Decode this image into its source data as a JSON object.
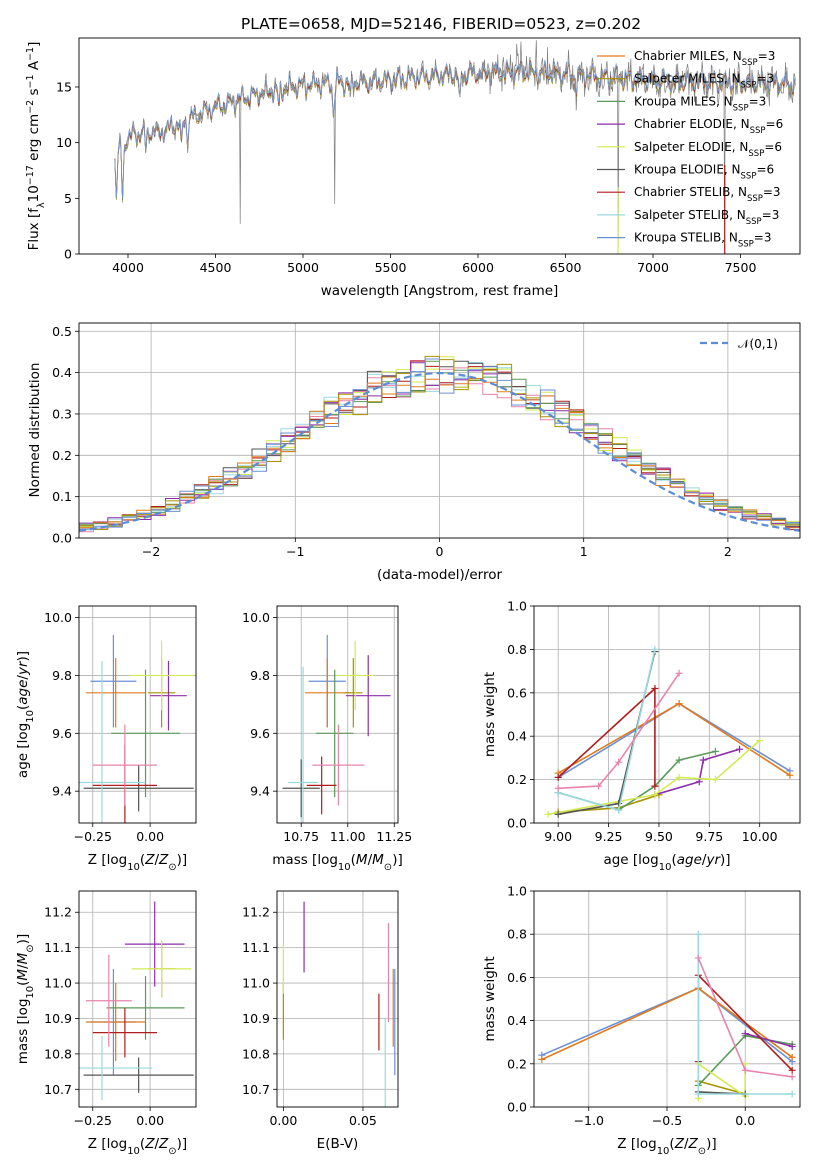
{
  "figure_title": "PLATE=0658, MJD=52146, FIBERID=0523, z=0.202",
  "colors": [
    "#6c8fd6",
    "#e07b1e",
    "#a89300",
    "#5a9a5a",
    "#8c2fa8",
    "#d4ea55",
    "#555555",
    "#b01d1d",
    "#9ad8df",
    "#e883ab"
  ],
  "chart_data": [
    {
      "id": "spectrum",
      "type": "line",
      "xlabel": "wavelength [Angstrom, rest frame]",
      "ylabel": "Flux [f_λ 10^{-17} erg cm^{-2} s^{-1} A^{-1}]",
      "ylabel_parts": {
        "a": "Flux [f",
        "b": "λ",
        "c": "10",
        "d": "−17",
        "e": " erg cm",
        "f": "−2",
        "g": " s",
        "h": "−1",
        "i": " A",
        "j": "−1",
        "k": "]"
      },
      "xlim": [
        3720,
        7840
      ],
      "ylim": [
        0,
        19.4
      ],
      "xticks": [
        4000,
        4500,
        5000,
        5500,
        6000,
        6500,
        7000,
        7500
      ],
      "yticks": [
        0,
        5,
        10,
        15
      ],
      "grid": false,
      "legend_position": "top-right",
      "data_range": [
        3925,
        7815
      ],
      "series": [
        {
          "name": "Chabrier MILES, N_SSP=3",
          "label": "Chabrier MILES, N",
          "sub": "SSP",
          "tail": "=3"
        },
        {
          "name": "Salpeter MILES, N_SSP=3",
          "label": "Salpeter MILES, N",
          "sub": "SSP",
          "tail": "=3"
        },
        {
          "name": "Kroupa MILES, N_SSP=3",
          "label": "Kroupa MILES, N",
          "sub": "SSP",
          "tail": "=3"
        },
        {
          "name": "Chabrier ELODIE, N_SSP=6",
          "label": "Chabrier ELODIE, N",
          "sub": "SSP",
          "tail": "=6"
        },
        {
          "name": "Salpeter ELODIE, N_SSP=6",
          "label": "Salpeter ELODIE, N",
          "sub": "SSP",
          "tail": "=6"
        },
        {
          "name": "Kroupa ELODIE, N_SSP=6",
          "label": "Kroupa ELODIE, N",
          "sub": "SSP",
          "tail": "=6"
        },
        {
          "name": "Chabrier STELIB, N_SSP=3",
          "label": "Chabrier STELIB, N",
          "sub": "SSP",
          "tail": "=3"
        },
        {
          "name": "Salpeter STELIB, N_SSP=3",
          "label": "Salpeter STELIB, N",
          "sub": "SSP",
          "tail": "=3"
        },
        {
          "name": "Kroupa STELIB, N_SSP=3",
          "label": "Kroupa STELIB, N",
          "sub": "SSP",
          "tail": "=3"
        }
      ],
      "continuum": [
        [
          3925,
          9.0
        ],
        [
          3950,
          9.5
        ],
        [
          4000,
          10.5
        ],
        [
          4100,
          11.0
        ],
        [
          4200,
          11.0
        ],
        [
          4300,
          11.8
        ],
        [
          4500,
          13.2
        ],
        [
          4700,
          14.2
        ],
        [
          5000,
          15.2
        ],
        [
          5300,
          15.4
        ],
        [
          5600,
          15.8
        ],
        [
          5900,
          16.2
        ],
        [
          6200,
          16.3
        ],
        [
          6500,
          16.2
        ],
        [
          6800,
          15.8
        ],
        [
          7100,
          15.5
        ],
        [
          7400,
          15.4
        ],
        [
          7815,
          15.3
        ]
      ],
      "absorptions": [
        [
          3934,
          3.5
        ],
        [
          3969,
          5.0
        ],
        [
          4102,
          1.6
        ],
        [
          4304,
          2.3
        ],
        [
          4341,
          1.5
        ],
        [
          4861,
          1.5
        ],
        [
          5175,
          2.6
        ],
        [
          5270,
          1.2
        ],
        [
          5895,
          2.8
        ],
        [
          6563,
          1.3
        ]
      ],
      "spikes": [
        [
          4640,
          2.7
        ],
        [
          5180,
          4.5
        ],
        [
          6800,
          0.5
        ],
        [
          7410,
          0.3
        ]
      ]
    },
    {
      "id": "residual-distribution",
      "type": "step",
      "xlabel": "(data-model)/error",
      "ylabel": "Normed distribution",
      "xlim": [
        -2.5,
        2.5
      ],
      "ylim": [
        0,
        0.52
      ],
      "xticks": [
        -2,
        -1,
        0,
        1,
        2
      ],
      "yticks": [
        0.0,
        0.1,
        0.2,
        0.3,
        0.4,
        0.5
      ],
      "grid": true,
      "legend_position": "top-right",
      "gaussian": {
        "name": "𝒩(0,1)",
        "mean": 0,
        "sigma": 1
      },
      "bin_width": 0.1
    },
    {
      "id": "age-vs-Z",
      "type": "errorbar",
      "xlabel": "Z [log10(Z/Z⊙)]",
      "ylabel": "age  [log10(age/yr)]",
      "xlim": [
        -0.31,
        0.2
      ],
      "ylim": [
        9.29,
        10.04
      ],
      "xticks": [
        -0.25,
        0.0
      ],
      "yticks": [
        9.4,
        9.6,
        9.8,
        10.0
      ],
      "grid": true,
      "points": [
        {
          "x": -0.16,
          "y": 9.78,
          "dx": 0.1,
          "dy": 0.16,
          "c": 0
        },
        {
          "x": -0.15,
          "y": 9.74,
          "dx": 0.13,
          "dy": 0.12,
          "c": 1
        },
        {
          "x": 0.05,
          "y": 9.74,
          "dx": 0.06,
          "dy": 0.12,
          "c": 2
        },
        {
          "x": -0.02,
          "y": 9.6,
          "dx": 0.15,
          "dy": 0.22,
          "c": 3
        },
        {
          "x": 0.08,
          "y": 9.73,
          "dx": 0.08,
          "dy": 0.12,
          "c": 4
        },
        {
          "x": 0.05,
          "y": 9.8,
          "dx": 0.14,
          "dy": 0.12,
          "c": 5
        },
        {
          "x": -0.05,
          "y": 9.41,
          "dx": 0.24,
          "dy": 0.08,
          "c": 6
        },
        {
          "x": -0.11,
          "y": 9.42,
          "dx": 0.14,
          "dy": 0.14,
          "c": 7
        },
        {
          "x": -0.21,
          "y": 9.43,
          "dx": 0.19,
          "dy": 0.42,
          "c": 8
        },
        {
          "x": -0.11,
          "y": 9.49,
          "dx": 0.14,
          "dy": 0.14,
          "c": 9
        }
      ]
    },
    {
      "id": "age-vs-mass",
      "type": "errorbar",
      "xlabel": "mass [log10(M/M⊙)]",
      "xlim": [
        10.62,
        11.27
      ],
      "ylim": [
        9.29,
        10.04
      ],
      "xticks": [
        10.75,
        11.0,
        11.25
      ],
      "yticks": [
        9.4,
        9.6,
        9.8,
        10.0
      ],
      "grid": true,
      "points": [
        {
          "x": 10.89,
          "y": 9.78,
          "dx": 0.1,
          "dy": 0.16,
          "c": 0
        },
        {
          "x": 10.89,
          "y": 9.74,
          "dx": 0.12,
          "dy": 0.12,
          "c": 1
        },
        {
          "x": 11.03,
          "y": 9.74,
          "dx": 0.05,
          "dy": 0.12,
          "c": 2
        },
        {
          "x": 10.93,
          "y": 9.6,
          "dx": 0.1,
          "dy": 0.22,
          "c": 3
        },
        {
          "x": 11.11,
          "y": 9.73,
          "dx": 0.12,
          "dy": 0.14,
          "c": 4
        },
        {
          "x": 11.04,
          "y": 9.8,
          "dx": 0.1,
          "dy": 0.12,
          "c": 5
        },
        {
          "x": 10.75,
          "y": 9.41,
          "dx": 0.1,
          "dy": 0.1,
          "c": 6
        },
        {
          "x": 10.86,
          "y": 9.42,
          "dx": 0.08,
          "dy": 0.1,
          "c": 7
        },
        {
          "x": 10.76,
          "y": 9.43,
          "dx": 0.08,
          "dy": 0.4,
          "c": 8
        },
        {
          "x": 10.95,
          "y": 9.49,
          "dx": 0.14,
          "dy": 0.14,
          "c": 9
        }
      ]
    },
    {
      "id": "mass-weight-vs-age",
      "type": "line",
      "xlabel": "age  [log10(age/yr)]",
      "ylabel": "mass weight",
      "xlim": [
        8.88,
        10.2
      ],
      "ylim": [
        0,
        1.0
      ],
      "xticks": [
        9.0,
        9.25,
        9.5,
        9.75,
        10.0
      ],
      "yticks": [
        0.0,
        0.2,
        0.4,
        0.6,
        0.8,
        1.0
      ],
      "grid": true,
      "series": [
        {
          "c": 0,
          "x": [
            9.0,
            9.6,
            10.15
          ],
          "y": [
            0.21,
            0.55,
            0.24
          ]
        },
        {
          "c": 1,
          "x": [
            9.0,
            9.6,
            10.15
          ],
          "y": [
            0.23,
            0.55,
            0.22
          ]
        },
        {
          "c": 2,
          "x": [
            9.0,
            9.3,
            9.5
          ],
          "y": [
            0.05,
            0.07,
            0.13
          ]
        },
        {
          "c": 3,
          "x": [
            9.0,
            9.3,
            9.48,
            9.6,
            9.78
          ],
          "y": [
            0.14,
            0.06,
            0.17,
            0.29,
            0.33
          ]
        },
        {
          "c": 4,
          "x": [
            9.48,
            9.7,
            9.72,
            9.9
          ],
          "y": [
            0.13,
            0.19,
            0.29,
            0.34
          ]
        },
        {
          "c": 5,
          "x": [
            8.95,
            9.48,
            9.6,
            9.78,
            10.0
          ],
          "y": [
            0.04,
            0.13,
            0.21,
            0.2,
            0.38
          ]
        },
        {
          "c": 6,
          "x": [
            9.0,
            9.3,
            9.48
          ],
          "y": [
            0.04,
            0.09,
            0.79
          ]
        },
        {
          "c": 7,
          "x": [
            9.0,
            9.48,
            9.48
          ],
          "y": [
            0.21,
            0.62,
            0.17
          ]
        },
        {
          "c": 8,
          "x": [
            9.0,
            9.3,
            9.48
          ],
          "y": [
            0.14,
            0.06,
            0.8
          ]
        },
        {
          "c": 9,
          "x": [
            9.0,
            9.2,
            9.3,
            9.6
          ],
          "y": [
            0.16,
            0.17,
            0.28,
            0.69
          ]
        }
      ]
    },
    {
      "id": "mass-vs-Z",
      "type": "errorbar",
      "xlabel": "Z [log10(Z/Z⊙)]",
      "ylabel": "mass [log10(M/M⊙)]",
      "xlim": [
        -0.31,
        0.2
      ],
      "ylim": [
        10.65,
        11.26
      ],
      "xticks": [
        -0.25,
        0.0
      ],
      "yticks": [
        10.7,
        10.8,
        10.9,
        11.0,
        11.1,
        11.2
      ],
      "grid": true,
      "points": [
        {
          "x": -0.16,
          "y": 10.89,
          "dx": 0.1,
          "dy": 0.15,
          "c": 0
        },
        {
          "x": -0.15,
          "y": 10.89,
          "dx": 0.13,
          "dy": 0.11,
          "c": 1
        },
        {
          "x": 0.05,
          "y": 11.04,
          "dx": 0.06,
          "dy": 0.08,
          "c": 2
        },
        {
          "x": -0.02,
          "y": 10.93,
          "dx": 0.17,
          "dy": 0.09,
          "c": 3
        },
        {
          "x": 0.02,
          "y": 11.11,
          "dx": 0.13,
          "dy": 0.12,
          "c": 4
        },
        {
          "x": 0.05,
          "y": 11.04,
          "dx": 0.13,
          "dy": 0.08,
          "c": 5
        },
        {
          "x": -0.05,
          "y": 10.74,
          "dx": 0.24,
          "dy": 0.05,
          "c": 6
        },
        {
          "x": -0.11,
          "y": 10.86,
          "dx": 0.14,
          "dy": 0.07,
          "c": 7
        },
        {
          "x": -0.21,
          "y": 10.76,
          "dx": 0.22,
          "dy": 0.09,
          "c": 8
        },
        {
          "x": -0.18,
          "y": 10.95,
          "dx": 0.1,
          "dy": 0.13,
          "c": 9
        }
      ]
    },
    {
      "id": "mass-vs-EBV",
      "type": "errorbar",
      "xlabel": "E(B-V)",
      "xlim": [
        -0.004,
        0.072
      ],
      "ylim": [
        10.65,
        11.26
      ],
      "xticks": [
        0.0,
        0.05
      ],
      "yticks": [
        10.7,
        10.8,
        10.9,
        11.0,
        11.1,
        11.2
      ],
      "grid": true,
      "points": [
        {
          "x": 0.0,
          "y": 10.92,
          "dx": 0,
          "dy": 0.08,
          "c": 2
        },
        {
          "x": 0.013,
          "y": 11.13,
          "dx": 0,
          "dy": 0.1,
          "c": 4
        },
        {
          "x": 0.0,
          "y": 11.04,
          "dx": 0,
          "dy": 0.07,
          "c": 5
        },
        {
          "x": 0.06,
          "y": 10.89,
          "dx": 0,
          "dy": 0.08,
          "c": 7
        },
        {
          "x": 0.064,
          "y": 10.77,
          "dx": 0,
          "dy": 0.13,
          "c": 8
        },
        {
          "x": 0.066,
          "y": 11.03,
          "dx": 0,
          "dy": 0.14,
          "c": 9
        },
        {
          "x": 0.069,
          "y": 10.93,
          "dx": 0,
          "dy": 0.11,
          "c": 1
        },
        {
          "x": 0.07,
          "y": 10.89,
          "dx": 0,
          "dy": 0.15,
          "c": 0
        }
      ]
    },
    {
      "id": "mass-weight-vs-Z",
      "type": "line",
      "xlabel": "Z [log10(Z/Z⊙)]",
      "ylabel": "mass weight",
      "xlim": [
        -1.35,
        0.35
      ],
      "ylim": [
        0,
        1.0
      ],
      "xticks": [
        -1.0,
        -0.5,
        0.0
      ],
      "yticks": [
        0.0,
        0.2,
        0.4,
        0.6,
        0.8,
        1.0
      ],
      "grid": true,
      "series": [
        {
          "c": 0,
          "x": [
            -1.3,
            -0.3,
            0.3
          ],
          "y": [
            0.24,
            0.55,
            0.21
          ]
        },
        {
          "c": 1,
          "x": [
            -1.3,
            -0.3,
            0.3
          ],
          "y": [
            0.22,
            0.55,
            0.23
          ]
        },
        {
          "c": 2,
          "x": [
            -0.3,
            0.0
          ],
          "y": [
            0.12,
            0.06
          ]
        },
        {
          "c": 3,
          "x": [
            -0.3,
            0.0,
            0.3
          ],
          "y": [
            0.1,
            0.33,
            0.29
          ]
        },
        {
          "c": 4,
          "x": [
            0.0,
            0.3
          ],
          "y": [
            0.34,
            0.28
          ]
        },
        {
          "c": 5,
          "x": [
            -0.3,
            -0.3,
            0.0,
            0.0
          ],
          "y": [
            0.04,
            0.2,
            0.05,
            0.2
          ]
        },
        {
          "c": 6,
          "x": [
            -0.3,
            0.0
          ],
          "y": [
            0.07,
            0.06
          ]
        },
        {
          "c": 7,
          "x": [
            -0.3,
            -0.3,
            0.3
          ],
          "y": [
            0.21,
            0.61,
            0.17
          ]
        },
        {
          "c": 8,
          "x": [
            -0.3,
            -0.3,
            0.3
          ],
          "y": [
            0.8,
            0.06,
            0.06
          ]
        },
        {
          "c": 9,
          "x": [
            -0.3,
            0.0,
            0.3
          ],
          "y": [
            0.69,
            0.17,
            0.14
          ]
        }
      ]
    }
  ]
}
